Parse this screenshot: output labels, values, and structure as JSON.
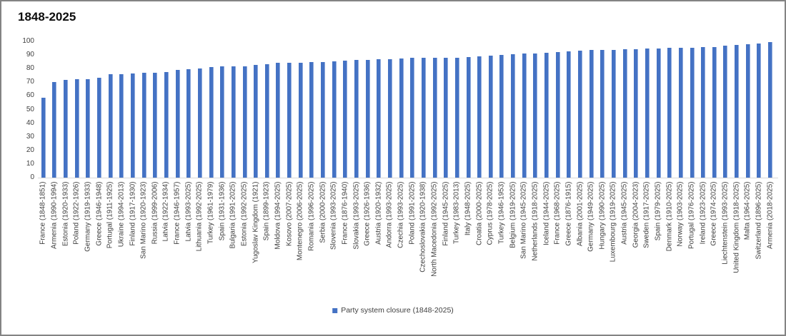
{
  "chart_data": {
    "type": "bar",
    "title": "1848-2025",
    "legend_label": "Party system closure (1848-2025)",
    "legend_position": "bottom",
    "grid": false,
    "xlabel": "",
    "ylabel": "",
    "ylim": [
      0,
      100
    ],
    "ytick_step": 10,
    "bar_color": "#4472C4",
    "bar_edge_color": "#8FAADC",
    "axis_line_color": "#D9D9D9",
    "text_color": "#404040",
    "categories": [
      "France (1848-1851)",
      "Armenia (1990-1994)",
      "Estonia (1920-1933)",
      "Poland (1922-1926)",
      "Germany (1919-1933)",
      "Greece (1946-1948)",
      "Portugal (1911-1925)",
      "Ukraine (1994-2013)",
      "Finland (1917-1930)",
      "San Marino (1920-1923)",
      "Russia (1999-2006)",
      "Latvia (1922-1934)",
      "France (1946-1957)",
      "Latvia (1993-2025)",
      "Lithuania (1992-2025)",
      "Turkey (1961-1979)",
      "Spain (1931-1936)",
      "Bulgaria (1991-2025)",
      "Estonia (1992-2025)",
      "Yugoslav Kingdom (1921)",
      "Spain (1899-1923)",
      "Moldova (1994-2025)",
      "Kosovo (2007-2025)",
      "Montenegro (2006-2025)",
      "Romania (1996-2025)",
      "Serbia (2000-2025)",
      "Slovenia (1993-2025)",
      "France (1876-1940)",
      "Slovakia (1993-2025)",
      "Greece (1926-1936)",
      "Austria (1920-1932)",
      "Andorra (1993-2025)",
      "Czechia (1993-2025)",
      "Poland (1991-2025)",
      "Czechoslovakia (1920-1938)",
      "North Macedonia (1992-2025)",
      "Finland (1945-2025)",
      "Turkey (1983-2013)",
      "Italy (1948-2025)",
      "Croatia (2000-2025)",
      "Cyprus (1978-2025)",
      "Turkey (1946-1953)",
      "Belgium (1919-2025)",
      "San Marino (1945-2025)",
      "Netherlands (1918-2025)",
      "Iceland (1944-2025)",
      "France (1968-2025)",
      "Greece (1876-1915)",
      "Albania (2001-2025)",
      "Germany (1949-2025)",
      "Hungary (1990-2025)",
      "Luxembourg (1919-2025)",
      "Austria (1945-2025)",
      "Georgia (2004-2023)",
      "Sweden (1917-2025)",
      "Spain (1979-2025)",
      "Denmark (1910-2025)",
      "Norway (1903-2025)",
      "Portugal (1976-2025)",
      "Ireland (1923-2025)",
      "Greece (1974-2025)",
      "Liechtenstein (1993-2025)",
      "United Kingdom (1918-2025)",
      "Malta (1964-2025)",
      "Switzerland (1896-2025)",
      "Armenia (2018-2025)"
    ],
    "values": [
      58.5,
      70,
      71.5,
      72,
      72.5,
      73.5,
      76,
      76,
      76.5,
      77,
      77,
      77.5,
      79,
      79.5,
      80,
      81,
      81.5,
      81.5,
      81.5,
      82.5,
      83,
      84.5,
      84.5,
      84.5,
      85,
      85,
      85.5,
      86,
      86.5,
      86.5,
      87,
      87,
      87.5,
      88,
      88,
      88,
      88,
      88,
      88.5,
      89,
      89.5,
      90,
      90.5,
      91,
      91,
      91.5,
      92,
      92.5,
      93,
      93.5,
      93.5,
      93.5,
      94,
      94.5,
      95,
      95,
      95.5,
      95.5,
      95.5,
      96,
      96,
      97,
      97.5,
      98,
      98.5,
      99.5
    ],
    "yticks": [
      0,
      10,
      20,
      30,
      40,
      50,
      60,
      70,
      80,
      90,
      100
    ]
  }
}
